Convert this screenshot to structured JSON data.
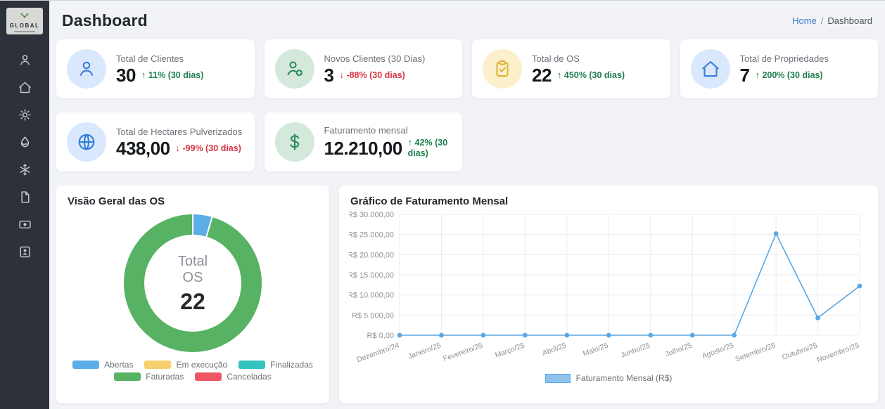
{
  "sidebar": {
    "logo_text": "GLOBAL",
    "items": [
      {
        "icon": "user"
      },
      {
        "icon": "home"
      },
      {
        "icon": "gear"
      },
      {
        "icon": "droplet"
      },
      {
        "icon": "snowflake"
      },
      {
        "icon": "file"
      },
      {
        "icon": "wallet"
      },
      {
        "icon": "id-card"
      }
    ]
  },
  "header": {
    "title": "Dashboard",
    "breadcrumb": {
      "home": "Home",
      "separator": "/",
      "current": "Dashboard"
    }
  },
  "stats": [
    {
      "icon": "user",
      "icon_bg": "#d9e8fc",
      "icon_color": "#3b7fd9",
      "label": "Total de Clientes",
      "value": "30",
      "arrow": "↑",
      "change": "11% (30 dias)",
      "trend": "up"
    },
    {
      "icon": "user-plus",
      "icon_bg": "#d4e9dc",
      "icon_color": "#2e8b57",
      "label": "Novos Clientes (30 Dias)",
      "value": "3",
      "arrow": "↓",
      "change": "-88% (30 dias)",
      "trend": "down"
    },
    {
      "icon": "clipboard-check",
      "icon_bg": "#fcf0cc",
      "icon_color": "#e0b335",
      "label": "Total de OS",
      "value": "22",
      "arrow": "↑",
      "change": "450% (30 dias)",
      "trend": "up"
    },
    {
      "icon": "home",
      "icon_bg": "#d9e8fc",
      "icon_color": "#3b7fd9",
      "label": "Total de Propriedades",
      "value": "7",
      "arrow": "↑",
      "change": "200% (30 dias)",
      "trend": "up"
    },
    {
      "icon": "globe",
      "icon_bg": "#d9e8fc",
      "icon_color": "#2f7fd6",
      "label": "Total de Hectares Pulverizados",
      "value": "438,00",
      "arrow": "↓",
      "change": "-99% (30 dias)",
      "trend": "down"
    },
    {
      "icon": "dollar",
      "icon_bg": "#d4e9dc",
      "icon_color": "#2e8b57",
      "label": "Faturamento mensal",
      "value": "12.210,00",
      "arrow": "↑",
      "change": "42% (30 dias)",
      "trend": "up"
    }
  ],
  "chart_data": [
    {
      "type": "pie",
      "title": "Visão Geral das OS",
      "center": {
        "label_line1": "Total",
        "label_line2": "OS",
        "value": "22"
      },
      "segments": [
        {
          "label": "Abertas",
          "value": 1,
          "color": "#5caee8"
        },
        {
          "label": "Em execução",
          "value": 0,
          "color": "#f7cf6e"
        },
        {
          "label": "Finalizadas",
          "value": 0,
          "color": "#35c3c0"
        },
        {
          "label": "Faturadas",
          "value": 21,
          "color": "#57b263"
        },
        {
          "label": "Canceladas",
          "value": 0,
          "color": "#ef5663"
        }
      ],
      "legend_position": "bottom",
      "donut_cutout": "70%"
    },
    {
      "type": "line",
      "title": "Gráfico de Faturamento Mensal",
      "categories": [
        "Dezembro/24",
        "Janeiro/25",
        "Fevereiro/25",
        "Março/25",
        "Abril/25",
        "Maio/25",
        "Junho/25",
        "Julho/25",
        "Agosto/25",
        "Setembro/25",
        "Outubro/25",
        "Novembro/25"
      ],
      "series": [
        {
          "name": "Faturamento Mensal (R$)",
          "values": [
            0,
            0,
            0,
            0,
            0,
            0,
            0,
            0,
            0,
            25200,
            4300,
            12210
          ]
        }
      ],
      "ylim": [
        0,
        30000
      ],
      "y_ticks": [
        {
          "value": 0,
          "label": "R$ 0,00"
        },
        {
          "value": 5000,
          "label": "R$ 5.000,00"
        },
        {
          "value": 10000,
          "label": "R$ 10.000,00"
        },
        {
          "value": 15000,
          "label": "R$ 15.000,00"
        },
        {
          "value": 20000,
          "label": "R$ 20.000,00"
        },
        {
          "value": 25000,
          "label": "R$ 25.000,00"
        },
        {
          "value": 30000,
          "label": "R$ 30.000,00"
        }
      ],
      "grid": true,
      "legend_position": "bottom",
      "line_color": "#5aa7e4",
      "point_color": "#5aa7e4"
    }
  ],
  "colors": {
    "sidebar_bg": "#2c313a",
    "content_bg": "#f1f3f7",
    "green_text": "#1b7f4d",
    "red_text": "#d63341",
    "accent_blue": "#3e7cc7",
    "grid_line": "#e9ecf0"
  }
}
